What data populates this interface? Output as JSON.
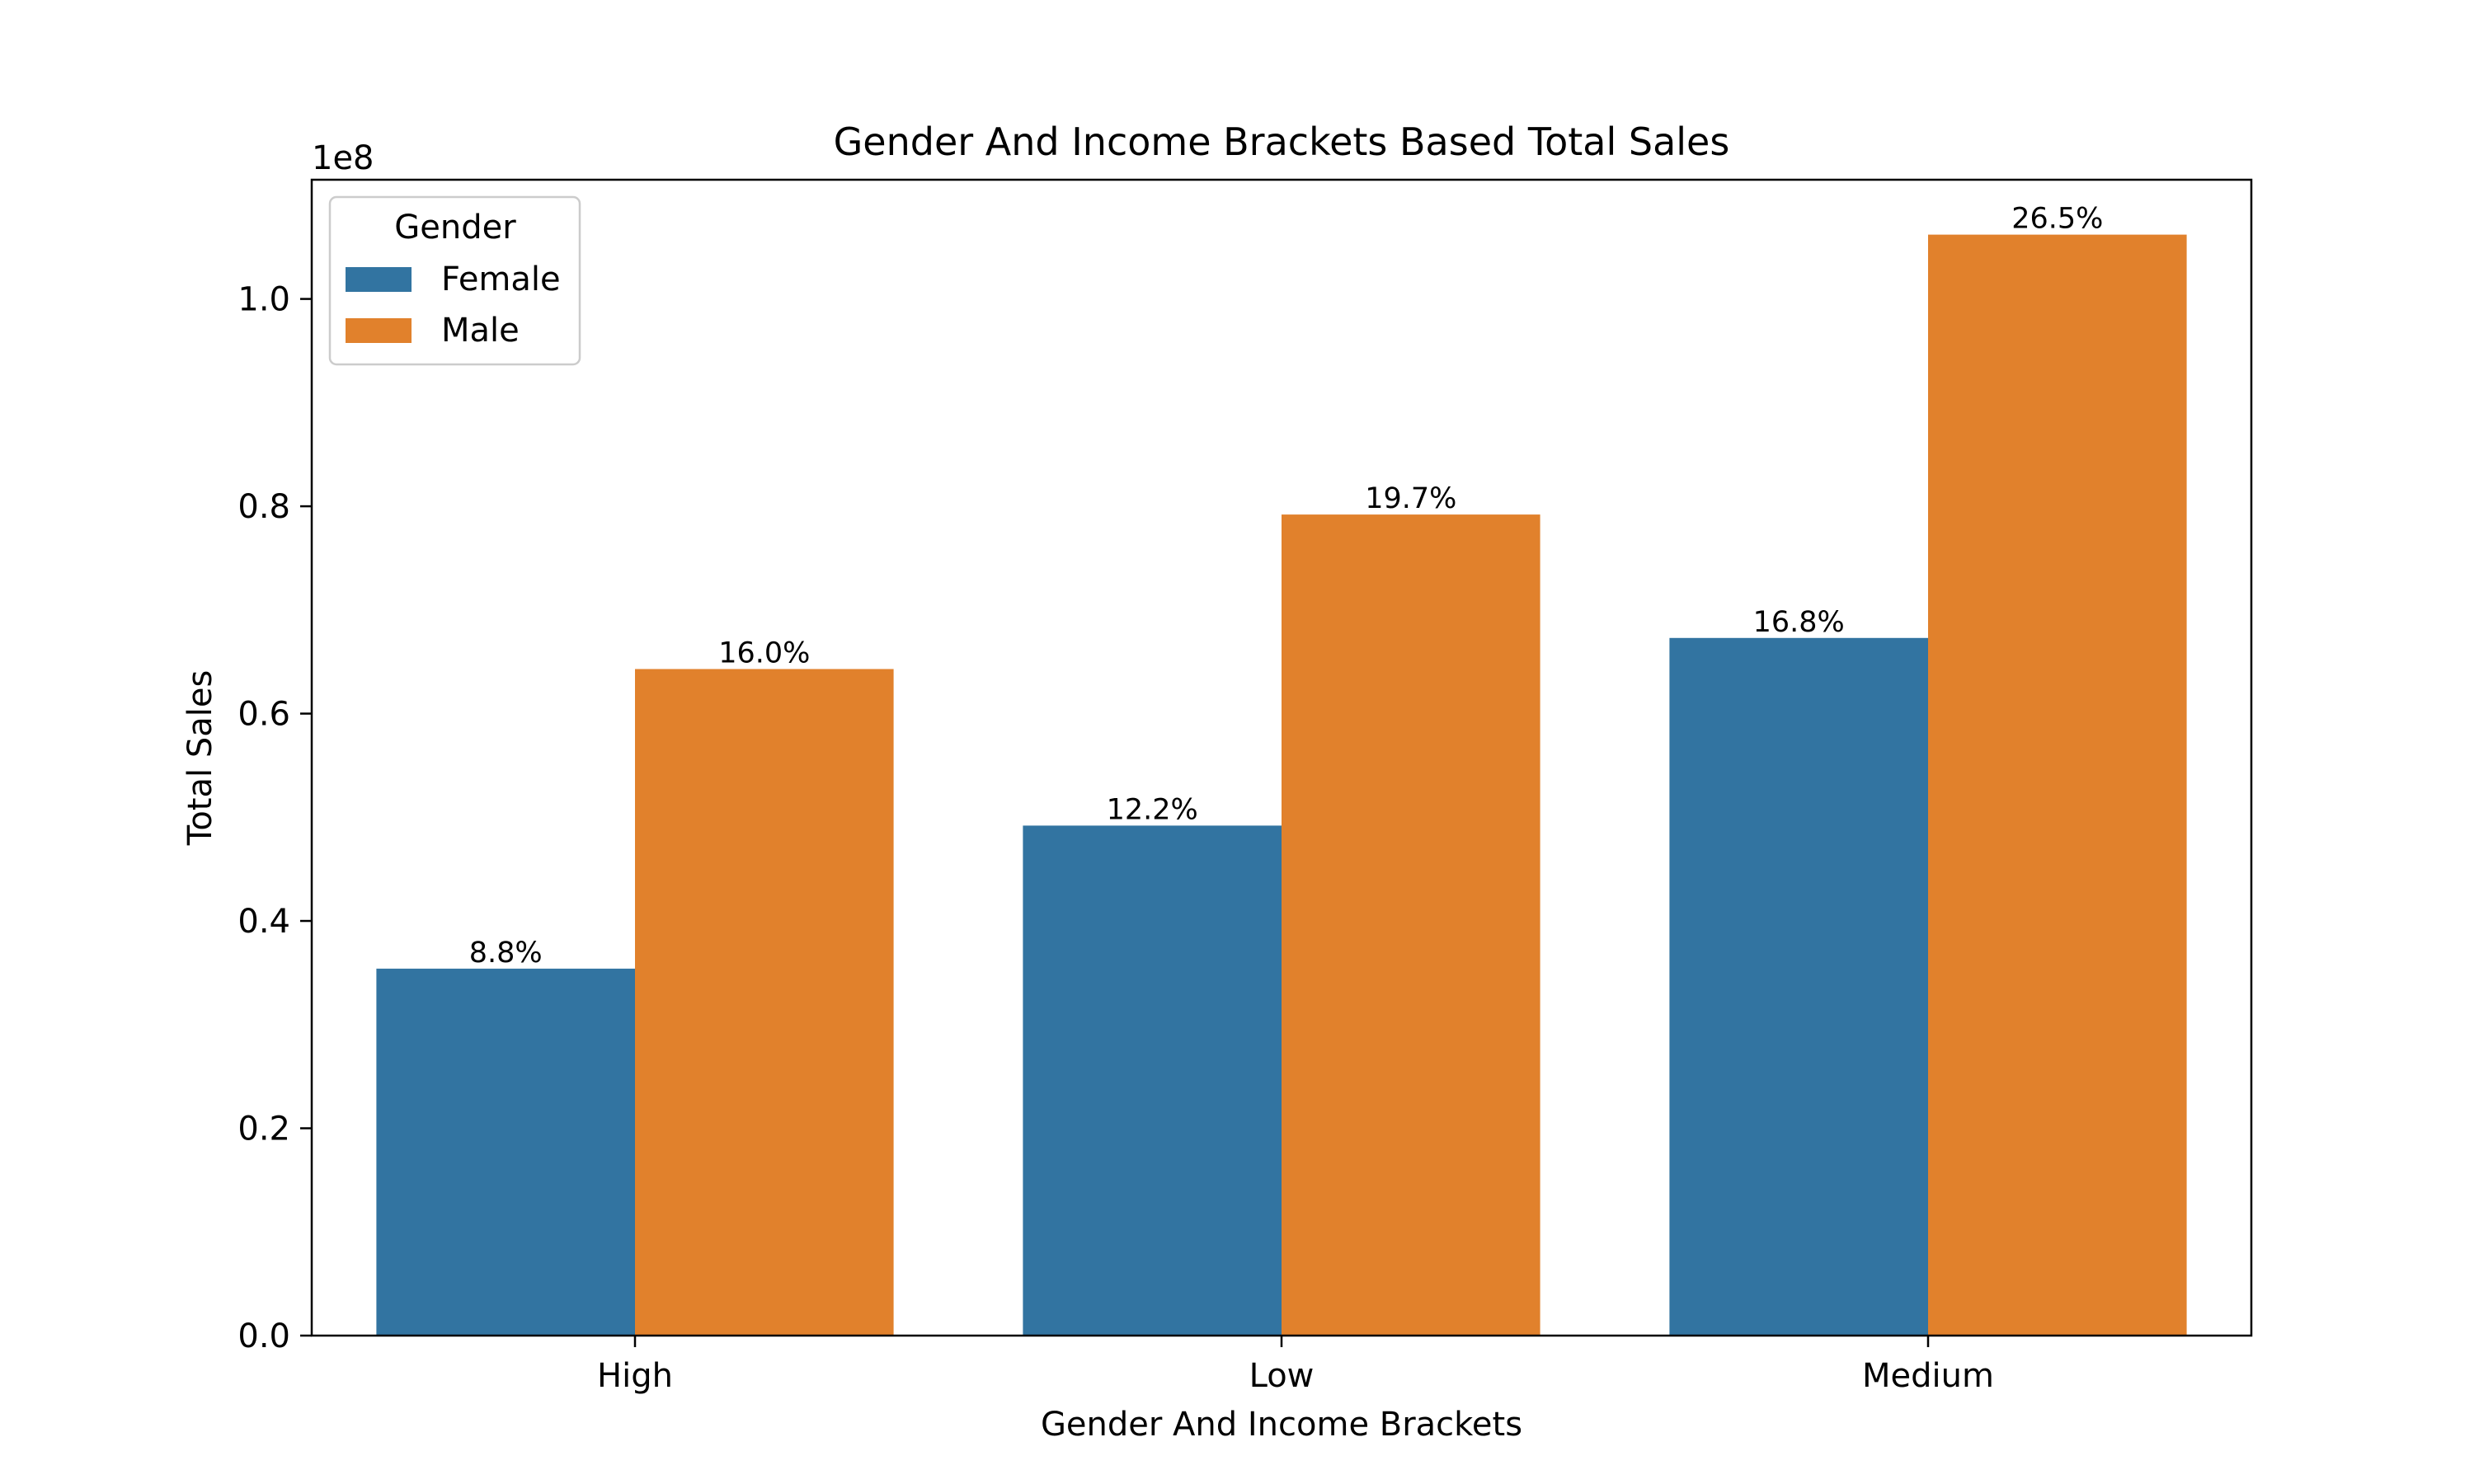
{
  "chart_data": {
    "type": "bar",
    "title": "Gender And Income Brackets Based Total Sales",
    "xlabel": "Gender And Income Brackets",
    "ylabel": "Total Sales",
    "y_offset_label": "1e8",
    "categories": [
      "High",
      "Low",
      "Medium"
    ],
    "ylim": [
      0,
      1.115
    ],
    "yticks": [
      0.0,
      0.2,
      0.4,
      0.6,
      0.8,
      1.0
    ],
    "ytick_labels": [
      "0.0",
      "0.2",
      "0.4",
      "0.6",
      "0.8",
      "1.0"
    ],
    "y_scale_note": "values in units of 1e8",
    "legend": {
      "title": "Gender",
      "position": "upper left"
    },
    "grid": false,
    "series": [
      {
        "name": "Female",
        "color": "#3274a1",
        "values": [
          0.354,
          0.492,
          0.673
        ],
        "labels": [
          "8.8%",
          "12.2%",
          "16.8%"
        ]
      },
      {
        "name": "Male",
        "color": "#e1812c",
        "values": [
          0.643,
          0.792,
          1.062
        ],
        "labels": [
          "16.0%",
          "19.7%",
          "26.5%"
        ]
      }
    ]
  }
}
